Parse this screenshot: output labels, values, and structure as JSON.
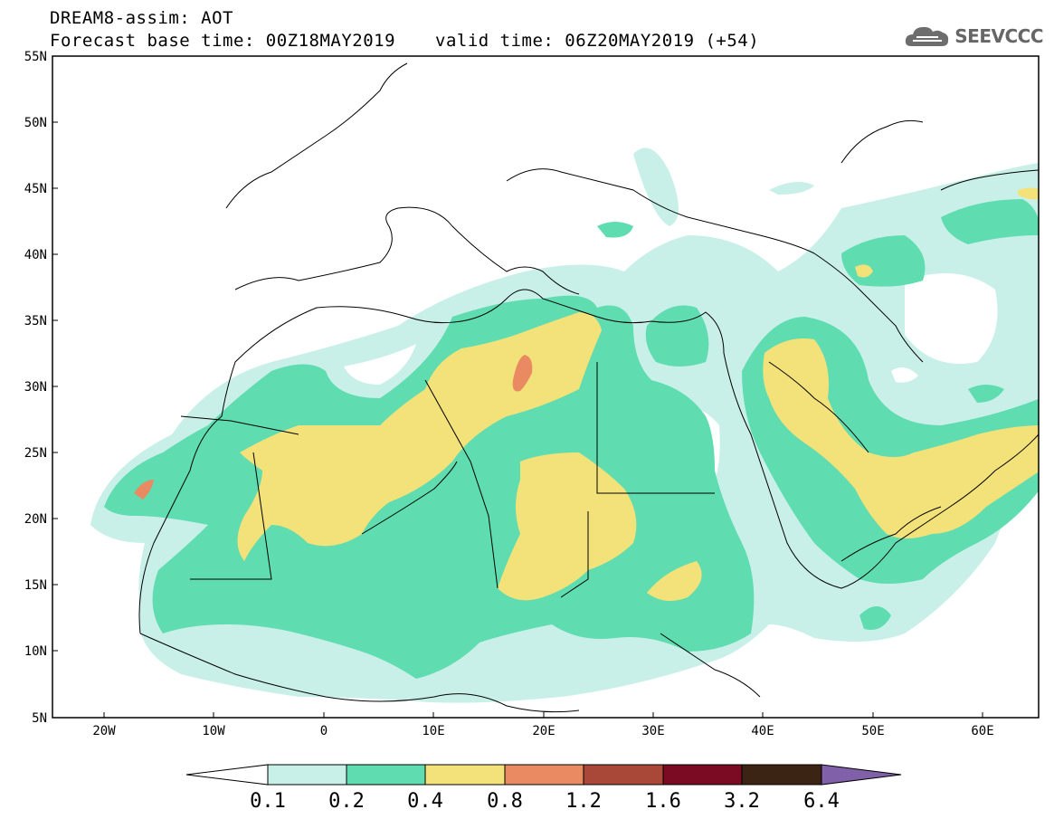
{
  "header": {
    "line1": "DREAM8-assim: AOT",
    "line2": "Forecast base time: 00Z18MAY2019",
    "valid_time": "valid time: 06Z20MAY2019 (+54)"
  },
  "logo": {
    "text": "SEEVCCC",
    "icon": "cloud-logo-icon"
  },
  "map": {
    "lon_range": [
      -25,
      65
    ],
    "lat_range": [
      5,
      55
    ],
    "lon_ticks": [
      "20W",
      "10W",
      "0",
      "10E",
      "20E",
      "30E",
      "40E",
      "50E",
      "60E"
    ],
    "lat_ticks": [
      "55N",
      "50N",
      "45N",
      "40N",
      "35N",
      "30N",
      "25N",
      "20N",
      "15N",
      "10N",
      "5N"
    ]
  },
  "colorbar": {
    "labels": [
      "0.1",
      "0.2",
      "0.4",
      "0.8",
      "1.2",
      "1.6",
      "3.2",
      "6.4"
    ],
    "colors": [
      "#c8f0e8",
      "#5fdcb0",
      "#f3e27a",
      "#e98a63",
      "#a94838",
      "#7a0b22",
      "#3b2414",
      "#8060a8"
    ]
  }
}
